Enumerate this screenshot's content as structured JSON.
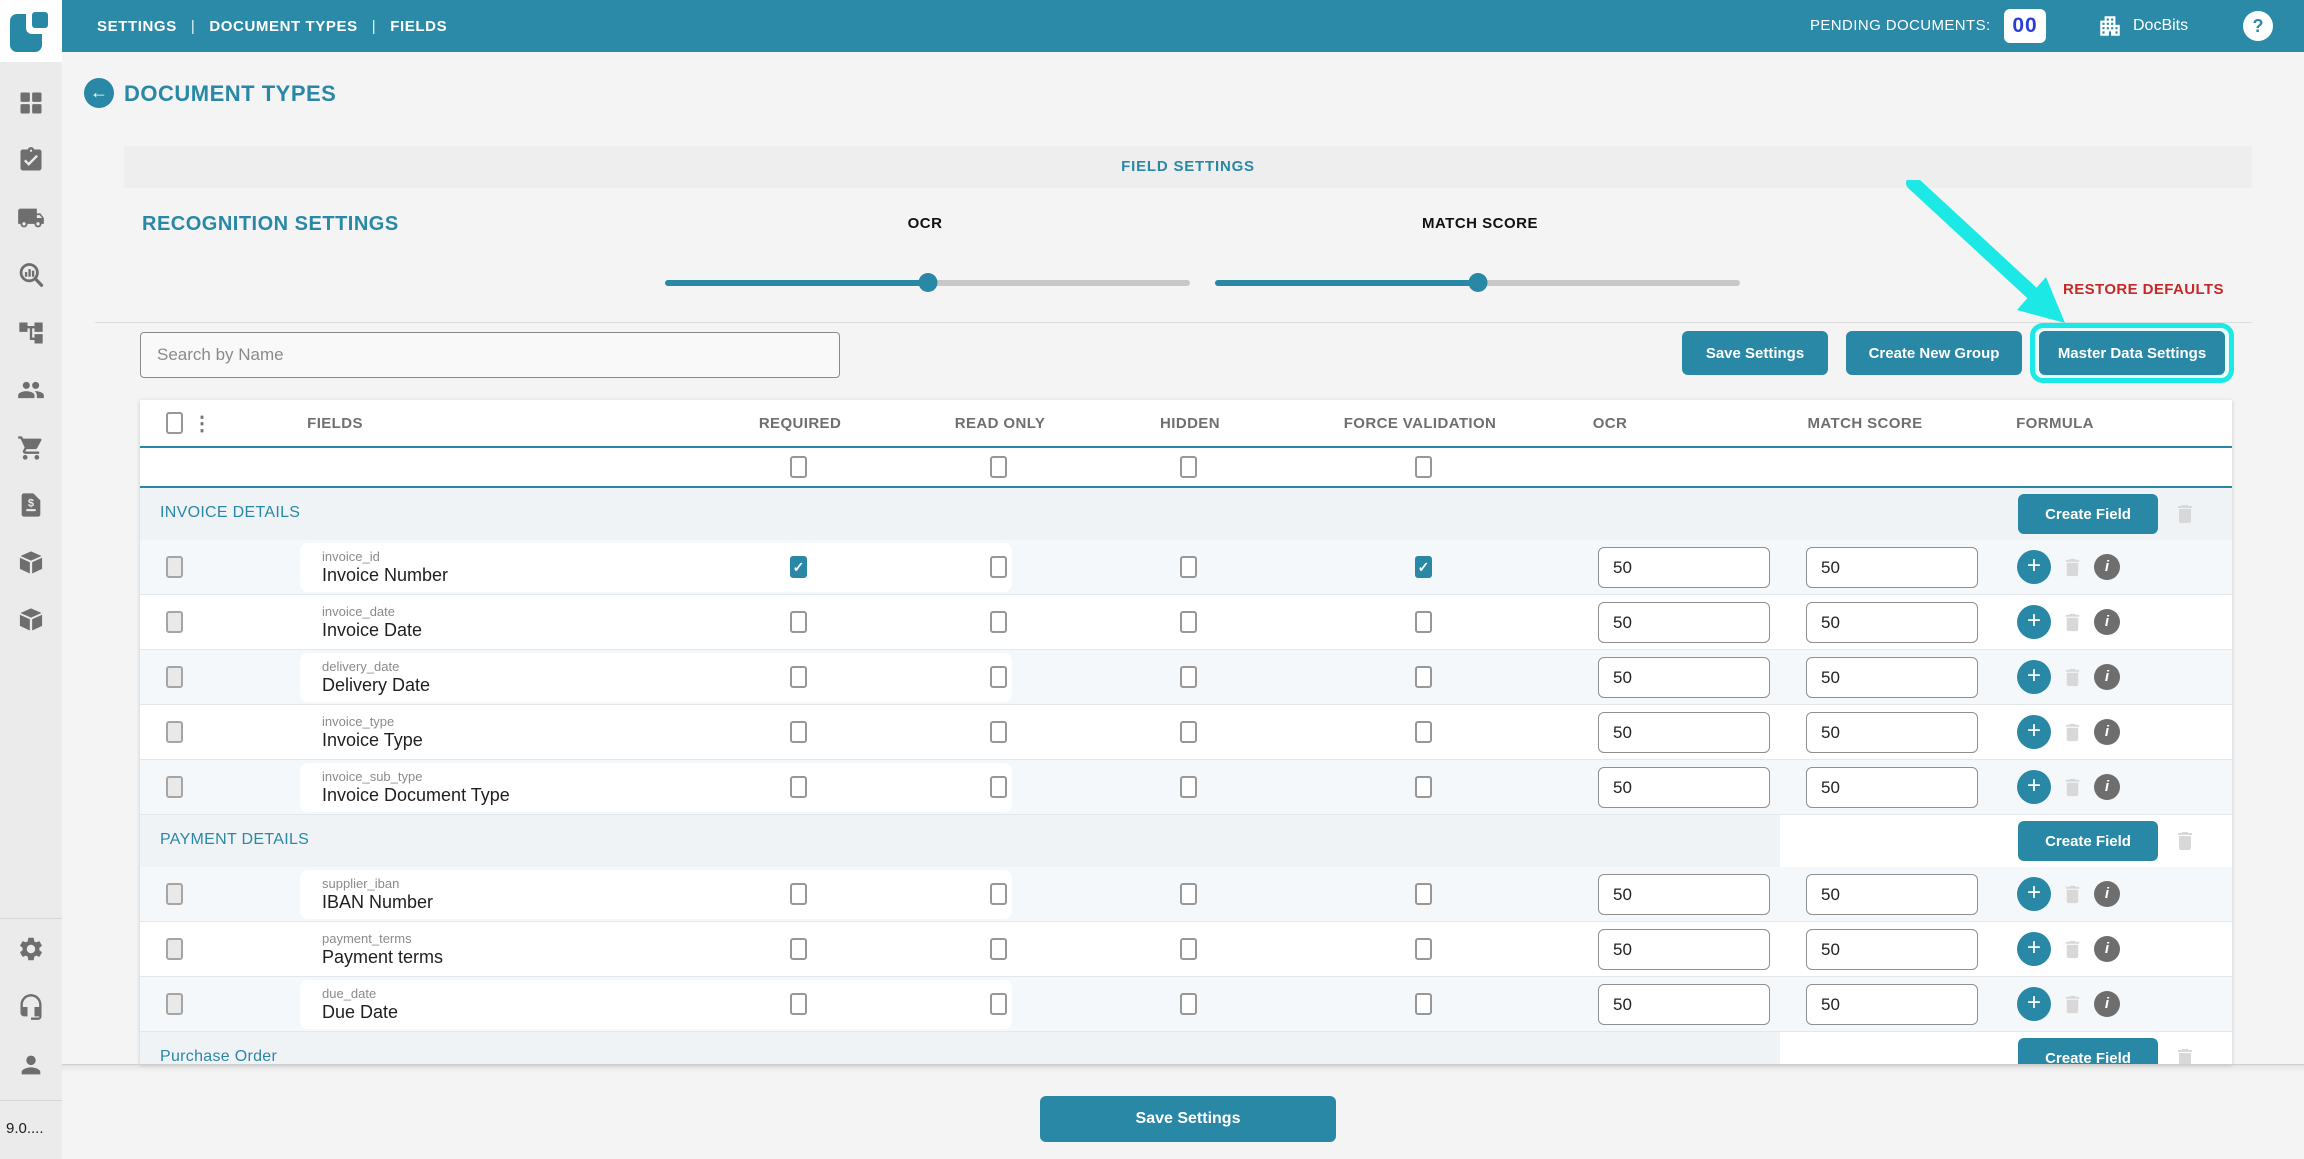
{
  "topbar": {
    "nav": [
      {
        "label": "SETTINGS"
      },
      {
        "label": "DOCUMENT TYPES"
      },
      {
        "label": "FIELDS"
      }
    ],
    "separator": "|",
    "pending_label": "PENDING DOCUMENTS:",
    "pending_count": "00",
    "brand": "DocBits",
    "help_glyph": "?",
    "icons": [
      "app-logo",
      "building-icon",
      "help-icon"
    ]
  },
  "sidebar": {
    "icons": [
      "dashboard",
      "tasks-clipboard",
      "shipping-truck",
      "analytics-search",
      "workflow-tree",
      "users",
      "shopping-cart",
      "invoice-document",
      "package",
      "package-alt",
      "settings-gear",
      "support-headset",
      "profile-person"
    ],
    "version": "9.0...."
  },
  "page": {
    "title": "DOCUMENT TYPES",
    "back_glyph": "←",
    "banner": "FIELD SETTINGS",
    "recognition_title": "RECOGNITION SETTINGS",
    "restore_defaults": "RESTORE DEFAULTS",
    "search_placeholder": "Search by Name",
    "sliders": {
      "ocr_label": "OCR",
      "ocr_percent": 50,
      "match_label": "MATCH SCORE",
      "match_percent": 50
    },
    "actions": {
      "save": "Save Settings",
      "create_group": "Create New Group",
      "master_data": "Master Data Settings"
    }
  },
  "table": {
    "columns": [
      "FIELDS",
      "REQUIRED",
      "READ ONLY",
      "HIDDEN",
      "FORCE VALIDATION",
      "OCR",
      "MATCH SCORE",
      "FORMULA"
    ],
    "menu_glyph": "⋮",
    "create_field_label": "Create Field",
    "groups": [
      {
        "name": "INVOICE DETAILS",
        "fields": [
          {
            "key": "invoice_id",
            "label": "Invoice Number",
            "required": true,
            "read_only": false,
            "hidden": false,
            "force_validation": true,
            "ocr": "50",
            "match_score": "50"
          },
          {
            "key": "invoice_date",
            "label": "Invoice Date",
            "required": false,
            "read_only": false,
            "hidden": false,
            "force_validation": false,
            "ocr": "50",
            "match_score": "50"
          },
          {
            "key": "delivery_date",
            "label": "Delivery Date",
            "required": false,
            "read_only": false,
            "hidden": false,
            "force_validation": false,
            "ocr": "50",
            "match_score": "50"
          },
          {
            "key": "invoice_type",
            "label": "Invoice Type",
            "required": false,
            "read_only": false,
            "hidden": false,
            "force_validation": false,
            "ocr": "50",
            "match_score": "50"
          },
          {
            "key": "invoice_sub_type",
            "label": "Invoice Document Type",
            "required": false,
            "read_only": false,
            "hidden": false,
            "force_validation": false,
            "ocr": "50",
            "match_score": "50"
          }
        ]
      },
      {
        "name": "PAYMENT DETAILS",
        "fields": [
          {
            "key": "supplier_iban",
            "label": "IBAN Number",
            "required": false,
            "read_only": false,
            "hidden": false,
            "force_validation": false,
            "ocr": "50",
            "match_score": "50"
          },
          {
            "key": "payment_terms",
            "label": "Payment terms",
            "required": false,
            "read_only": false,
            "hidden": false,
            "force_validation": false,
            "ocr": "50",
            "match_score": "50"
          },
          {
            "key": "due_date",
            "label": "Due Date",
            "required": false,
            "read_only": false,
            "hidden": false,
            "force_validation": false,
            "ocr": "50",
            "match_score": "50"
          }
        ]
      },
      {
        "name": "Purchase Order",
        "fields": []
      }
    ]
  },
  "footer": {
    "save": "Save Settings"
  },
  "colors": {
    "teal": "#2b8aa7",
    "teal_button": "#2988a6",
    "highlight_cyan": "#1ce9e6",
    "restore_red": "#c62828",
    "badge_blue": "#2b3fd6",
    "group_row_bg": "#f0f3f6",
    "tint_row_bg": "#f5f8fa"
  }
}
